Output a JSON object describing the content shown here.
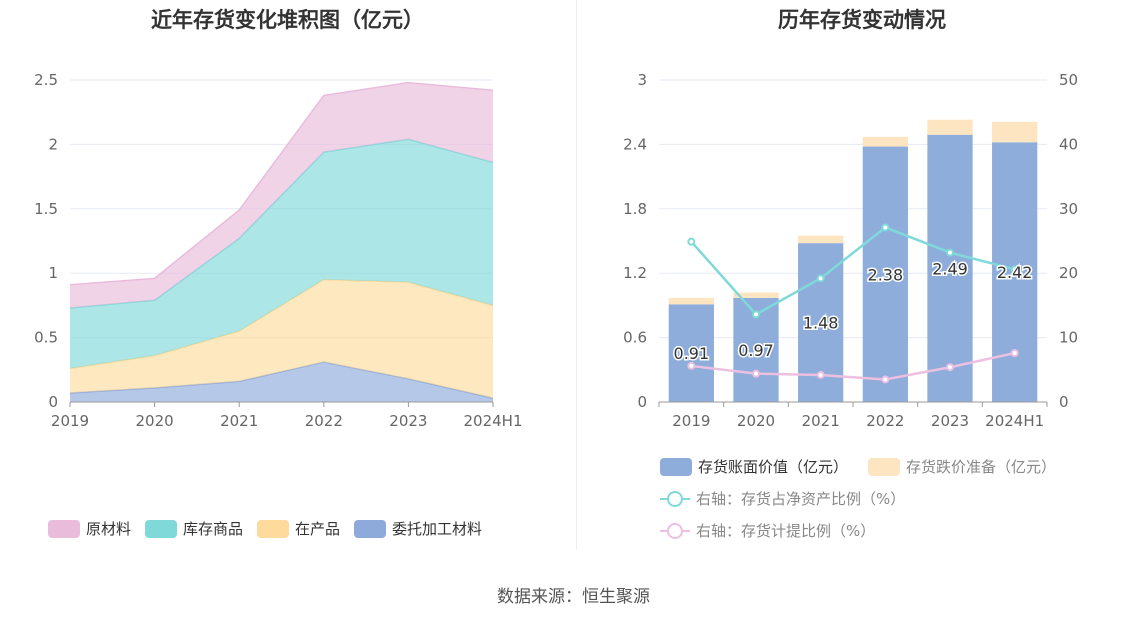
{
  "left_chart": {
    "title": "近年存货变化堆积图（亿元）",
    "legend": [
      {
        "label": "原材料",
        "color": "#e9bcdc"
      },
      {
        "label": "库存商品",
        "color": "#7fd9d9"
      },
      {
        "label": "在产品",
        "color": "#fedb9c"
      },
      {
        "label": "委托加工材料",
        "color": "#8eaadb"
      }
    ]
  },
  "right_chart": {
    "title": "历年存货变动情况",
    "legend": [
      {
        "label": "存货账面价值（亿元）",
        "color": "#8eaddb"
      },
      {
        "label": "存货跌价准备（亿元）",
        "color": "#fde5c2"
      },
      {
        "label": "右轴：存货占净资产比例（%）",
        "color": "#7fd9d9"
      },
      {
        "label": "右轴：存货计提比例（%）",
        "color": "#edbfe0"
      }
    ]
  },
  "source": "数据来源：恒生聚源",
  "chart_data": [
    {
      "type": "area",
      "stacked": true,
      "title": "近年存货变化堆积图（亿元）",
      "categories": [
        "2019",
        "2020",
        "2021",
        "2022",
        "2023",
        "2024H1"
      ],
      "yticks": [
        "0",
        "0.5",
        "1",
        "1.5",
        "2",
        "2.5"
      ],
      "ylim": [
        0,
        2.5
      ],
      "series": [
        {
          "name": "委托加工材料",
          "color": "#8eaadb",
          "values": [
            0.07,
            0.11,
            0.16,
            0.31,
            0.18,
            0.03
          ]
        },
        {
          "name": "在产品",
          "color": "#fedb9c",
          "values": [
            0.19,
            0.25,
            0.39,
            0.64,
            0.75,
            0.72
          ]
        },
        {
          "name": "库存商品",
          "color": "#7fd9d9",
          "values": [
            0.47,
            0.43,
            0.72,
            0.99,
            1.11,
            1.11
          ]
        },
        {
          "name": "原材料",
          "color": "#e9bcdc",
          "values": [
            0.18,
            0.17,
            0.22,
            0.44,
            0.44,
            0.56
          ]
        }
      ],
      "grid": true
    },
    {
      "type": "bar",
      "stacked": true,
      "title": "历年存货变动情况",
      "categories": [
        "2019",
        "2020",
        "2021",
        "2022",
        "2023",
        "2024H1"
      ],
      "yticks_left": [
        "0",
        "0.6",
        "1.2",
        "1.8",
        "2.4",
        "3"
      ],
      "yticks_right": [
        "0",
        "10",
        "20",
        "30",
        "40",
        "50"
      ],
      "ylim": [
        0,
        3
      ],
      "y2lim": [
        0,
        50
      ],
      "series": [
        {
          "name": "存货账面价值（亿元）",
          "color": "#8eaddb",
          "values": [
            0.91,
            0.97,
            1.48,
            2.38,
            2.49,
            2.42
          ],
          "labels": [
            "0.91",
            "0.97",
            "1.48",
            "2.38",
            "2.49",
            "2.42"
          ]
        },
        {
          "name": "存货跌价准备（亿元）",
          "color": "#fde5c2",
          "values": [
            0.06,
            0.05,
            0.07,
            0.09,
            0.14,
            0.19
          ]
        }
      ],
      "line_series": [
        {
          "name": "右轴：存货占净资产比例（%）",
          "color": "#7fd9d9",
          "axis": "right",
          "values": [
            24.9,
            13.6,
            19.2,
            27.1,
            23.2,
            20.6
          ]
        },
        {
          "name": "右轴：存货计提比例（%）",
          "color": "#edbfe0",
          "axis": "right",
          "values": [
            5.6,
            4.4,
            4.2,
            3.5,
            5.4,
            7.6
          ]
        }
      ],
      "grid": true
    }
  ]
}
